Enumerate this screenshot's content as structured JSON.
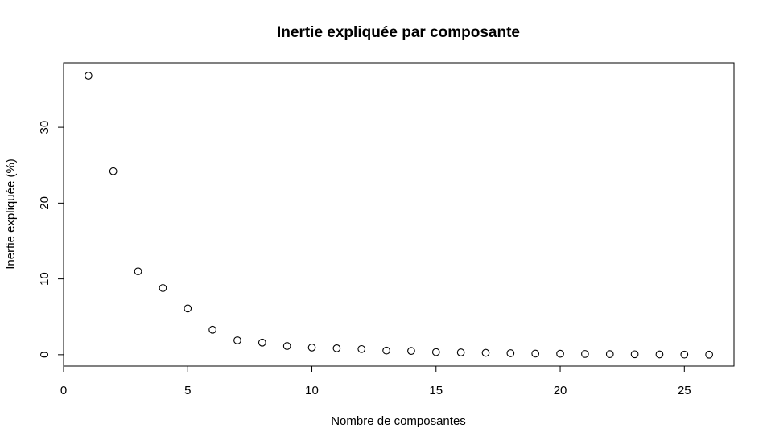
{
  "chart_data": {
    "type": "scatter",
    "title": "Inertie expliquée par composante",
    "xlabel": "Nombre de composantes",
    "ylabel": "Inertie expliquée (%)",
    "xlim": [
      0,
      27
    ],
    "ylim": [
      -1.5,
      38.5
    ],
    "xticks": [
      0,
      5,
      10,
      15,
      20,
      25
    ],
    "yticks": [
      0,
      10,
      20,
      30
    ],
    "grid": false,
    "legend": "none",
    "marker": "open-circle",
    "x": [
      1,
      2,
      3,
      4,
      5,
      6,
      7,
      8,
      9,
      10,
      11,
      12,
      13,
      14,
      15,
      16,
      17,
      18,
      19,
      20,
      21,
      22,
      23,
      24,
      25,
      26
    ],
    "y": [
      36.8,
      24.2,
      11.0,
      8.8,
      6.1,
      3.3,
      1.9,
      1.6,
      1.15,
      0.95,
      0.85,
      0.75,
      0.55,
      0.5,
      0.35,
      0.3,
      0.25,
      0.2,
      0.15,
      0.13,
      0.1,
      0.08,
      0.06,
      0.04,
      0.02,
      0.01
    ]
  }
}
